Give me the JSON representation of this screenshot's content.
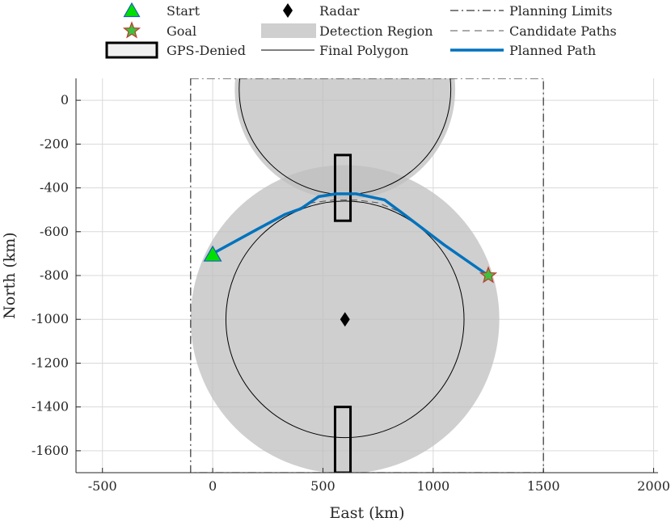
{
  "chart_data": {
    "type": "scatter",
    "xlabel": "East (km)",
    "ylabel": "North (km)",
    "xlim": [
      -620,
      2020
    ],
    "ylim": [
      -1700,
      100
    ],
    "xticks": [
      -500,
      0,
      500,
      1000,
      1500,
      2000
    ],
    "xtick_labels": [
      "-500",
      "0",
      "500",
      "1000",
      "1500",
      "2000"
    ],
    "yticks": [
      0,
      -200,
      -400,
      -600,
      -800,
      -1000,
      -1200,
      -1400,
      -1600
    ],
    "ytick_labels": [
      "0",
      "-200",
      "-400",
      "-600",
      "-800",
      "-1000",
      "-1200",
      "-1400",
      "-1600"
    ],
    "grid": true,
    "legend": {
      "placement": "top, outside",
      "entries": [
        {
          "key": "start",
          "label": "Start"
        },
        {
          "key": "radar",
          "label": "Radar"
        },
        {
          "key": "limits",
          "label": "Planning Limits"
        },
        {
          "key": "goal",
          "label": "Goal"
        },
        {
          "key": "detection",
          "label": "Detection Region"
        },
        {
          "key": "candidate",
          "label": "Candidate Paths"
        },
        {
          "key": "gps",
          "label": "GPS-Denied"
        },
        {
          "key": "polygon",
          "label": "Final Polygon"
        },
        {
          "key": "planned",
          "label": "Planned Path"
        }
      ]
    },
    "start": {
      "x": 0,
      "y": -700
    },
    "goal": {
      "x": 1250,
      "y": -800
    },
    "radars": [
      {
        "x": 600,
        "y": -1000
      }
    ],
    "detection_regions": [
      {
        "cx": 600,
        "cy": -1000,
        "r": 700
      },
      {
        "cx": 600,
        "cy": 50,
        "r": 500
      }
    ],
    "final_polygons": [
      {
        "cx": 600,
        "cy": -1000,
        "r": 540
      },
      {
        "cx": 600,
        "cy": 50,
        "r": 480
      }
    ],
    "gps_denied": [
      {
        "x0": 555,
        "x1": 625,
        "y0": -550,
        "y1": -250
      },
      {
        "x0": 555,
        "x1": 625,
        "y0": -1700,
        "y1": -1400
      }
    ],
    "planning_limits": {
      "x0": -100,
      "x1": 1500,
      "y0": -1700,
      "y1": 100
    },
    "candidate_path": [
      {
        "x": 350,
        "y": -510
      },
      {
        "x": 450,
        "y": -468
      },
      {
        "x": 550,
        "y": -455
      },
      {
        "x": 650,
        "y": -455
      },
      {
        "x": 750,
        "y": -468
      },
      {
        "x": 850,
        "y": -510
      }
    ],
    "planned_path": [
      {
        "x": 0,
        "y": -700
      },
      {
        "x": 200,
        "y": -590
      },
      {
        "x": 330,
        "y": -520
      },
      {
        "x": 400,
        "y": -495
      },
      {
        "x": 480,
        "y": -440
      },
      {
        "x": 560,
        "y": -427
      },
      {
        "x": 650,
        "y": -427
      },
      {
        "x": 780,
        "y": -455
      },
      {
        "x": 880,
        "y": -530
      },
      {
        "x": 1050,
        "y": -660
      },
      {
        "x": 1250,
        "y": -800
      }
    ],
    "colors": {
      "detection": "#bfbfbf",
      "planned": "#0072bd",
      "start_fill": "#00e000",
      "start_edge": "#1a5fb4",
      "goal_fill": "#3ec23e",
      "goal_edge": "#c0392b",
      "grid": "#d9d9d9"
    }
  }
}
